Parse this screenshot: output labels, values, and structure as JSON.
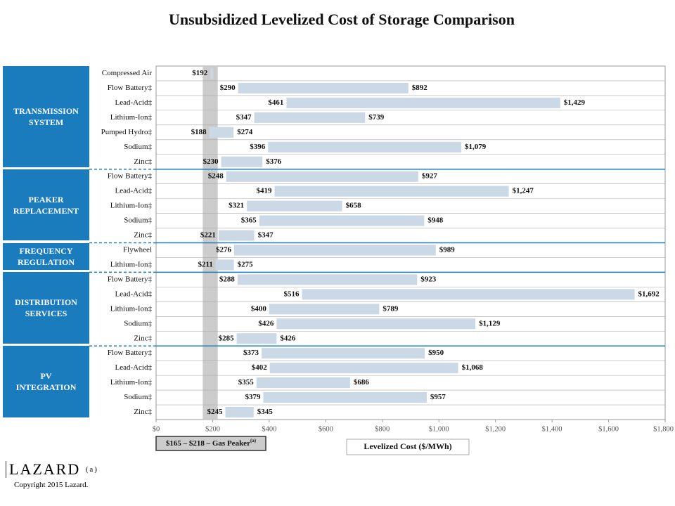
{
  "chart_data": {
    "type": "range_bar",
    "title": "Unsubsidized Levelized Cost of Storage Comparison",
    "categories": [
      "Compressed Air",
      "Flow Battery‡",
      "Lead-Acid‡",
      "Lithium-Ion‡",
      "Pumped Hydro‡",
      "Sodium‡",
      "Zinc‡",
      "Flow Battery‡",
      "Lead-Acid‡",
      "Lithium-Ion‡",
      "Sodium‡",
      "Zinc‡",
      "Flywheel",
      "Lithium-Ion‡",
      "Flow Battery‡",
      "Lead-Acid‡",
      "Lithium-Ion‡",
      "Sodium‡",
      "Zinc‡",
      "Flow Battery‡",
      "Lead-Acid‡",
      "Lithium-Ion‡",
      "Sodium‡",
      "Zinc‡"
    ],
    "groups": [
      {
        "label": "TRANSMISSION SYSTEM",
        "rows": 7
      },
      {
        "label": "PEAKER REPLACEMENT",
        "rows": 5
      },
      {
        "label": "FREQUENCY REGULATION",
        "rows": 2
      },
      {
        "label": "DISTRIBUTION SERVICES",
        "rows": 5
      },
      {
        "label": "PV INTEGRATION",
        "rows": 5
      }
    ],
    "series": [
      {
        "values": [
          192,
          290,
          461,
          347,
          188,
          396,
          230,
          248,
          419,
          321,
          365,
          221,
          276,
          211,
          288,
          516,
          400,
          426,
          285,
          373,
          402,
          355,
          379,
          245
        ],
        "value_labels": [
          "$192",
          "$290",
          "$461",
          "$347",
          "$188",
          "$396",
          "$230",
          "$248",
          "$419",
          "$321",
          "$365",
          "$221",
          "$276",
          "$211",
          "$288",
          "$516",
          "$400",
          "$426",
          "$285",
          "$373",
          "$402",
          "$355",
          "$379",
          "$245"
        ]
      },
      {
        "values": [
          null,
          892,
          1429,
          739,
          274,
          1079,
          376,
          927,
          1247,
          658,
          948,
          347,
          989,
          275,
          923,
          1692,
          789,
          1129,
          426,
          950,
          1068,
          686,
          957,
          345
        ],
        "value_labels": [
          null,
          "$892",
          "$1,429",
          "$739",
          "$274",
          "$1,079",
          "$376",
          "$927",
          "$1,247",
          "$658",
          "$948",
          "$347",
          "$989",
          "$275",
          "$923",
          "$1,692",
          "$789",
          "$1,129",
          "$426",
          "$950",
          "$1,068",
          "$686",
          "$957",
          "$345"
        ]
      }
    ],
    "color": "#cbd8e6",
    "xlim": [
      0,
      1800
    ],
    "xticks": [
      {
        "value": 0,
        "label": "$0"
      },
      {
        "value": 200,
        "label": "$200"
      },
      {
        "value": 400,
        "label": "$400"
      },
      {
        "value": 600,
        "label": "$600"
      },
      {
        "value": 800,
        "label": "$800"
      },
      {
        "value": 1000,
        "label": "$1,000"
      },
      {
        "value": 1200,
        "label": "$1,200"
      },
      {
        "value": 1400,
        "label": "$1,400"
      },
      {
        "value": 1600,
        "label": "$1,600"
      },
      {
        "value": 1800,
        "label": "$1,800"
      }
    ],
    "x_label": "Levelized Cost ($/MWh)",
    "band": {
      "range": [
        165,
        218
      ],
      "label": "$165 – $218 – Gas Peaker",
      "note": "(a)",
      "color": "#cccccc"
    }
  },
  "footer": {
    "logo": "LAZARD",
    "logo_note": "(a)",
    "copyright": "Copyright 2015 Lazard."
  }
}
